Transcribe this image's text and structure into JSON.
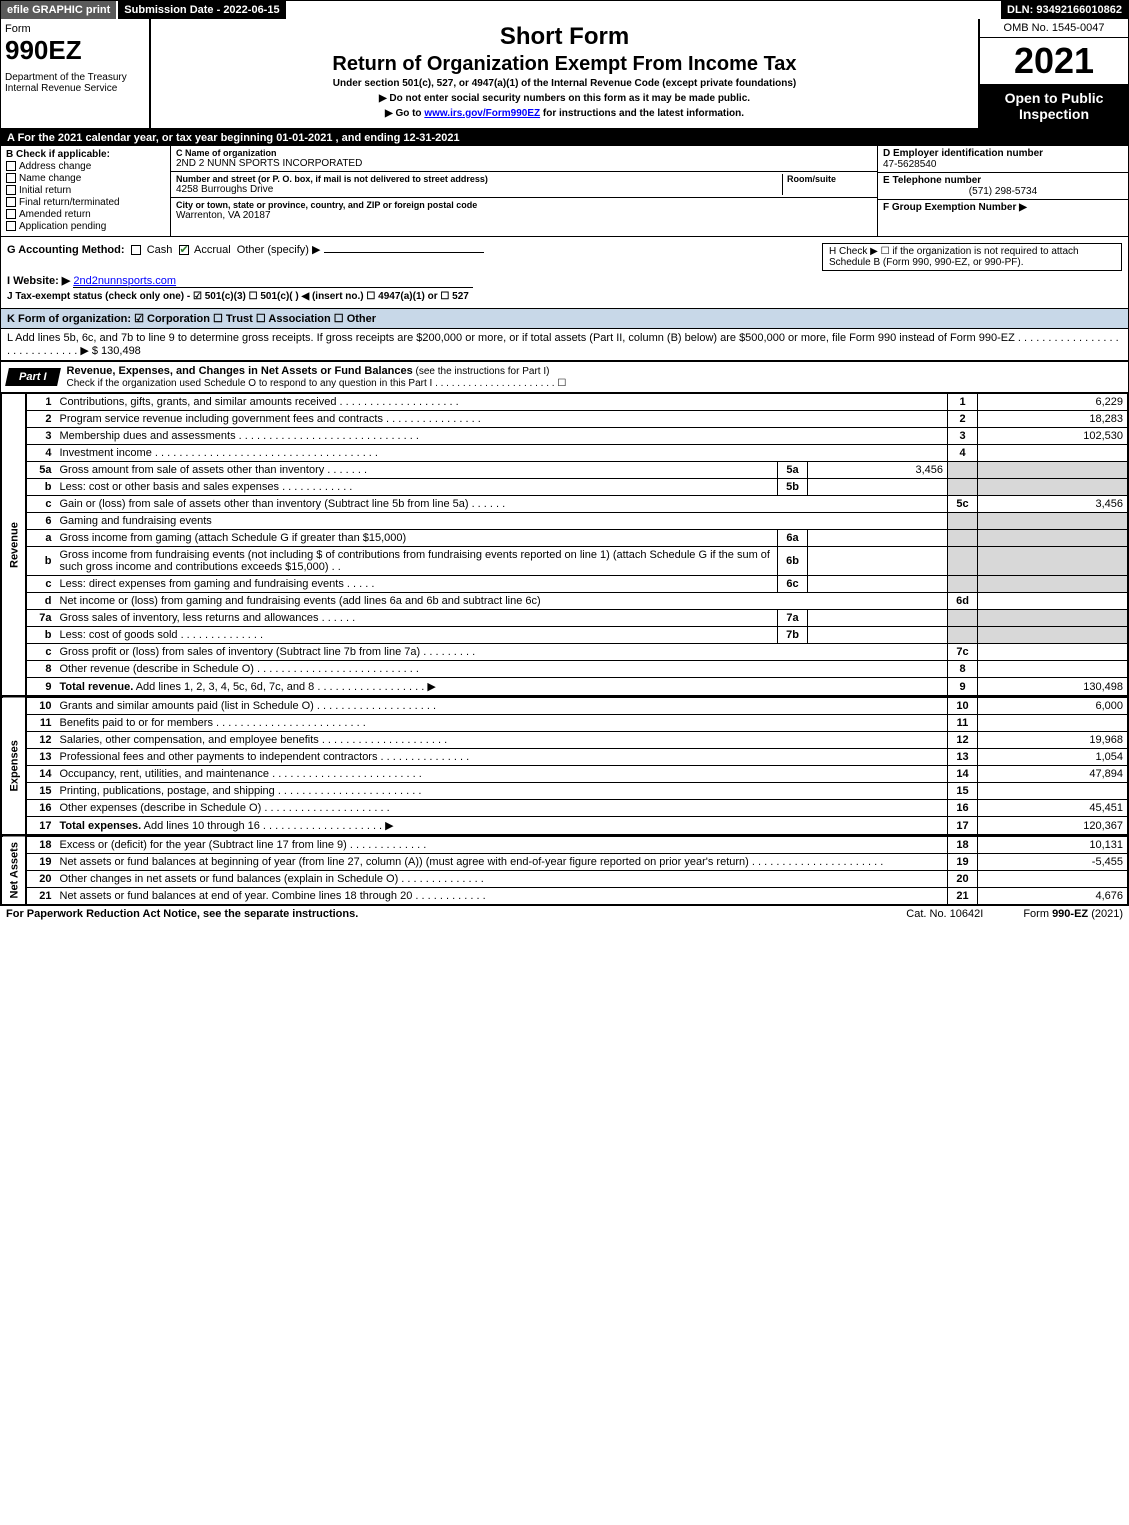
{
  "topbar": {
    "efile": "efile GRAPHIC print",
    "subdate_label": "Submission Date - 2022-06-15",
    "dln": "DLN: 93492166010862"
  },
  "header": {
    "form_word": "Form",
    "form_num": "990EZ",
    "dept": "Department of the Treasury\nInternal Revenue Service",
    "short_form": "Short Form",
    "title": "Return of Organization Exempt From Income Tax",
    "sub": "Under section 501(c), 527, or 4947(a)(1) of the Internal Revenue Code (except private foundations)",
    "note1": "▶ Do not enter social security numbers on this form as it may be made public.",
    "note2_pre": "▶ Go to ",
    "note2_link": "www.irs.gov/Form990EZ",
    "note2_post": " for instructions and the latest information.",
    "omb": "OMB No. 1545-0047",
    "year": "2021",
    "inspect": "Open to Public Inspection"
  },
  "section_a": "A  For the 2021 calendar year, or tax year beginning 01-01-2021 , and ending 12-31-2021",
  "col_b": {
    "hdr": "B  Check if applicable:",
    "opts": [
      "Address change",
      "Name change",
      "Initial return",
      "Final return/terminated",
      "Amended return",
      "Application pending"
    ]
  },
  "col_c": {
    "name_lbl": "C Name of organization",
    "name": "2ND 2 NUNN SPORTS INCORPORATED",
    "street_lbl": "Number and street (or P. O. box, if mail is not delivered to street address)",
    "room_lbl": "Room/suite",
    "street": "4258 Burroughs Drive",
    "city_lbl": "City or town, state or province, country, and ZIP or foreign postal code",
    "city": "Warrenton, VA  20187"
  },
  "col_de": {
    "d_lbl": "D Employer identification number",
    "d_val": "47-5628540",
    "e_lbl": "E Telephone number",
    "e_val": "(571) 298-5734",
    "f_lbl": "F Group Exemption Number  ▶"
  },
  "g_line": "G Accounting Method:",
  "g_opts": {
    "cash": "Cash",
    "accrual": "Accrual",
    "other": "Other (specify) ▶"
  },
  "h_text": "H  Check ▶  ☐  if the organization is not required to attach Schedule B (Form 990, 990-EZ, or 990-PF).",
  "i_label": "I Website: ▶",
  "i_val": "2nd2nunnsports.com",
  "j_line": "J Tax-exempt status (check only one) -  ☑ 501(c)(3)  ☐ 501(c)(  ) ◀ (insert no.)  ☐ 4947(a)(1) or  ☐ 527",
  "k_line": "K Form of organization:   ☑ Corporation   ☐ Trust   ☐ Association   ☐ Other",
  "l_text": "L Add lines 5b, 6c, and 7b to line 9 to determine gross receipts. If gross receipts are $200,000 or more, or if total assets (Part II, column (B) below) are $500,000 or more, file Form 990 instead of Form 990-EZ  .   .   .   .   .   .   .   .   .   .   .   .   .   .   .   .   .   .   .   .   .   .   .   .   .   .   .   .   .  ▶ $ 130,498",
  "part1": {
    "tab": "Part I",
    "title": "Revenue, Expenses, and Changes in Net Assets or Fund Balances",
    "title_note": " (see the instructions for Part I)",
    "sub": "Check if the organization used Schedule O to respond to any question in this Part I  .  .  .  .  .  .  .  .  .  .  .  .  .  .  .  .  .  .  .  .  .  .  ☐"
  },
  "side_labels": {
    "revenue": "Revenue",
    "expenses": "Expenses",
    "netassets": "Net Assets"
  },
  "rows": [
    {
      "n": "1",
      "desc": "Contributions, gifts, grants, and similar amounts received  .  .  .  .  .  .  .  .  .  .  .  .  .  .  .  .  .  .  .  .",
      "ln": "1",
      "val": "6,229"
    },
    {
      "n": "2",
      "desc": "Program service revenue including government fees and contracts  .  .  .  .  .  .  .  .  .  .  .  .  .  .  .  .",
      "ln": "2",
      "val": "18,283"
    },
    {
      "n": "3",
      "desc": "Membership dues and assessments  .  .  .  .  .  .  .  .  .  .  .  .  .  .  .  .  .  .  .  .  .  .  .  .  .  .  .  .  .  .",
      "ln": "3",
      "val": "102,530"
    },
    {
      "n": "4",
      "desc": "Investment income  .  .  .  .  .  .  .  .  .  .  .  .  .  .  .  .  .  .  .  .  .  .  .  .  .  .  .  .  .  .  .  .  .  .  .  .  .",
      "ln": "4",
      "val": ""
    },
    {
      "n": "5a",
      "desc": "Gross amount from sale of assets other than inventory  .  .  .  .  .  .  .",
      "sub": "5a",
      "subval": "3,456",
      "grey": true
    },
    {
      "n": "b",
      "desc": "Less: cost or other basis and sales expenses  .  .  .  .  .  .  .  .  .  .  .  .",
      "sub": "5b",
      "subval": "",
      "grey": true
    },
    {
      "n": "c",
      "desc": "Gain or (loss) from sale of assets other than inventory (Subtract line 5b from line 5a)  .  .  .  .  .  .",
      "ln": "5c",
      "val": "3,456"
    },
    {
      "n": "6",
      "desc": "Gaming and fundraising events",
      "grey": true,
      "noln": true
    },
    {
      "n": "a",
      "desc": "Gross income from gaming (attach Schedule G if greater than $15,000)",
      "sub": "6a",
      "subval": "",
      "grey": true
    },
    {
      "n": "b",
      "desc": "Gross income from fundraising events (not including $                      of contributions from fundraising events reported on line 1) (attach Schedule G if the sum of such gross income and contributions exceeds $15,000)     .   .",
      "sub": "6b",
      "subval": "",
      "grey": true
    },
    {
      "n": "c",
      "desc": "Less: direct expenses from gaming and fundraising events  .  .  .  .  .",
      "sub": "6c",
      "subval": "",
      "grey": true
    },
    {
      "n": "d",
      "desc": "Net income or (loss) from gaming and fundraising events (add lines 6a and 6b and subtract line 6c)",
      "ln": "6d",
      "val": ""
    },
    {
      "n": "7a",
      "desc": "Gross sales of inventory, less returns and allowances  .  .  .  .  .  .",
      "sub": "7a",
      "subval": "",
      "grey": true
    },
    {
      "n": "b",
      "desc": "Less: cost of goods sold        .   .   .   .   .   .   .   .   .   .   .   .   .   .",
      "sub": "7b",
      "subval": "",
      "grey": true
    },
    {
      "n": "c",
      "desc": "Gross profit or (loss) from sales of inventory (Subtract line 7b from line 7a)  .  .  .  .  .  .  .  .  .",
      "ln": "7c",
      "val": ""
    },
    {
      "n": "8",
      "desc": "Other revenue (describe in Schedule O)  .  .  .  .  .  .  .  .  .  .  .  .  .  .  .  .  .  .  .  .  .  .  .  .  .  .  .",
      "ln": "8",
      "val": ""
    },
    {
      "n": "9",
      "desc": "Total revenue. Add lines 1, 2, 3, 4, 5c, 6d, 7c, and 8   .   .   .   .   .   .   .   .   .   .   .   .   .   .   .   .   .   .    ▶",
      "ln": "9",
      "val": "130,498",
      "bold": true
    }
  ],
  "exp_rows": [
    {
      "n": "10",
      "desc": "Grants and similar amounts paid (list in Schedule O)  .  .  .  .  .  .  .  .  .  .  .  .  .  .  .  .  .  .  .  .",
      "ln": "10",
      "val": "6,000"
    },
    {
      "n": "11",
      "desc": "Benefits paid to or for members      .   .   .   .   .   .   .   .   .   .   .   .   .   .   .   .   .   .   .   .   .   .   .   .   .",
      "ln": "11",
      "val": ""
    },
    {
      "n": "12",
      "desc": "Salaries, other compensation, and employee benefits .  .  .  .  .  .  .  .  .  .  .  .  .  .  .  .  .  .  .  .  .",
      "ln": "12",
      "val": "19,968"
    },
    {
      "n": "13",
      "desc": "Professional fees and other payments to independent contractors  .  .  .  .  .  .  .  .  .  .  .  .  .  .  .",
      "ln": "13",
      "val": "1,054"
    },
    {
      "n": "14",
      "desc": "Occupancy, rent, utilities, and maintenance .  .  .  .  .  .  .  .  .  .  .  .  .  .  .  .  .  .  .  .  .  .  .  .  .",
      "ln": "14",
      "val": "47,894"
    },
    {
      "n": "15",
      "desc": "Printing, publications, postage, and shipping .  .  .  .  .  .  .  .  .  .  .  .  .  .  .  .  .  .  .  .  .  .  .  .",
      "ln": "15",
      "val": ""
    },
    {
      "n": "16",
      "desc": "Other expenses (describe in Schedule O)      .   .   .   .   .   .   .   .   .   .   .   .   .   .   .   .   .   .   .   .   .",
      "ln": "16",
      "val": "45,451"
    },
    {
      "n": "17",
      "desc": "Total expenses. Add lines 10 through 16       .   .   .   .   .   .   .   .   .   .   .   .   .   .   .   .   .   .   .   .    ▶",
      "ln": "17",
      "val": "120,367",
      "bold": true
    }
  ],
  "na_rows": [
    {
      "n": "18",
      "desc": "Excess or (deficit) for the year (Subtract line 17 from line 9)        .   .   .   .   .   .   .   .   .   .   .   .   .",
      "ln": "18",
      "val": "10,131"
    },
    {
      "n": "19",
      "desc": "Net assets or fund balances at beginning of year (from line 27, column (A)) (must agree with end-of-year figure reported on prior year's return) .  .  .  .  .  .  .  .  .  .  .  .  .  .  .  .  .  .  .  .  .  .",
      "ln": "19",
      "val": "-5,455"
    },
    {
      "n": "20",
      "desc": "Other changes in net assets or fund balances (explain in Schedule O) .  .  .  .  .  .  .  .  .  .  .  .  .  .",
      "ln": "20",
      "val": ""
    },
    {
      "n": "21",
      "desc": "Net assets or fund balances at end of year. Combine lines 18 through 20 .  .  .  .  .  .  .  .  .  .  .  .",
      "ln": "21",
      "val": "4,676"
    }
  ],
  "footer": {
    "left": "For Paperwork Reduction Act Notice, see the separate instructions.",
    "mid": "Cat. No. 10642I",
    "right": "Form 990-EZ (2021)"
  }
}
